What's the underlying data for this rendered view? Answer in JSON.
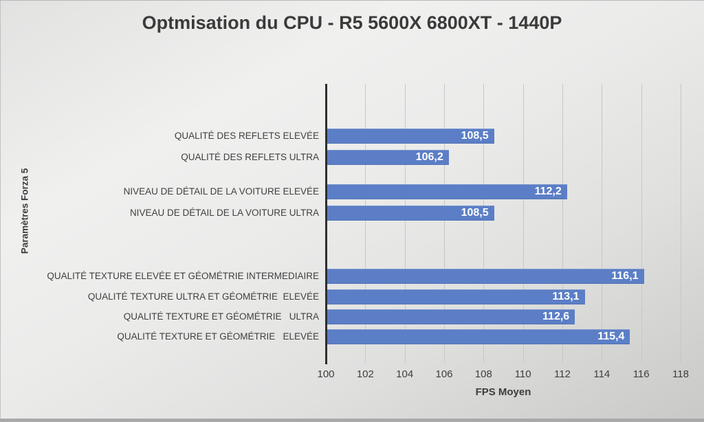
{
  "colors": {
    "bar": "#5b7ec6",
    "axis_line": "#2e2e2e",
    "gridline": "#c7c7c6",
    "title_text": "#3b3b3b",
    "label_text": "#3f3f3f",
    "value_text": "#ffffff",
    "background_light": "#f0f0ef",
    "background_dark": "#c9c9c8"
  },
  "chart_data": {
    "type": "bar",
    "orientation": "horizontal",
    "title": "Optmisation du CPU - R5 5600X 6800XT - 1440P",
    "xlabel": "FPS Moyen",
    "ylabel": "Paramètres Forza 5",
    "xlim": [
      100,
      118
    ],
    "xticks": [
      "100",
      "102",
      "104",
      "106",
      "108",
      "110",
      "112",
      "114",
      "116",
      "118"
    ],
    "grid": true,
    "legend": false,
    "categories": [
      "QUALITÉ DES REFLETS ELEVÉE",
      "QUALITÉ DES REFLETS ULTRA",
      "NIVEAU DE DÉTAIL DE LA VOITURE ELEVÉE",
      "NIVEAU DE DÉTAIL DE LA VOITURE ULTRA",
      "QUALITÉ TEXTURE ELEVÉE ET GÉOMÉTRIE INTERMEDIAIRE",
      "QUALITÉ TEXTURE ULTRA ET GÉOMÉTRIE  ELEVÉE",
      "QUALITÉ TEXTURE ET GÉOMÉTRIE   ULTRA",
      "QUALITÉ TEXTURE ET GÉOMÉTRIE   ELEVÉE"
    ],
    "values": [
      108.5,
      106.2,
      112.2,
      108.5,
      116.1,
      113.1,
      112.6,
      115.4
    ],
    "value_labels": [
      "108,5",
      "106,2",
      "112,2",
      "108,5",
      "116,1",
      "113,1",
      "112,6",
      "115,4"
    ],
    "group_sizes": [
      2,
      2,
      4
    ]
  }
}
